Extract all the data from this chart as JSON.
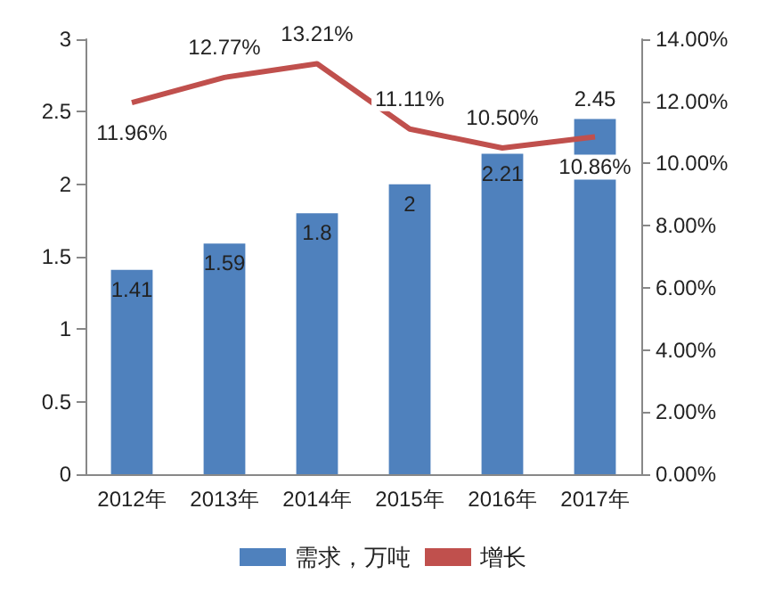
{
  "chart_data": {
    "type": "bar",
    "categories": [
      "2012年",
      "2013年",
      "2014年",
      "2015年",
      "2016年",
      "2017年"
    ],
    "series": [
      {
        "name": "需求，万吨",
        "color": "#4f81bd",
        "values": [
          1.41,
          1.59,
          1.8,
          2,
          2.21,
          2.45
        ],
        "value_labels": [
          "1.41",
          "1.59",
          "1.8",
          "2",
          "2.21",
          "2.45"
        ]
      },
      {
        "name": "增长",
        "type": "line",
        "axis": "y2",
        "color": "#c0504d",
        "values": [
          11.96,
          12.77,
          13.21,
          11.11,
          10.5,
          10.86
        ],
        "value_labels": [
          "11.96%",
          "12.77%",
          "13.21%",
          "11.11%",
          "10.50%",
          "10.86%"
        ]
      }
    ],
    "ylim": [
      0,
      3
    ],
    "yticks": [
      0,
      0.5,
      1,
      1.5,
      2,
      2.5,
      3
    ],
    "y2lim": [
      0,
      14
    ],
    "y2ticks": [
      {
        "value": 0,
        "label": "0.00%"
      },
      {
        "value": 2,
        "label": "2.00%"
      },
      {
        "value": 4,
        "label": "4.00%"
      },
      {
        "value": 6,
        "label": "6.00%"
      },
      {
        "value": 8,
        "label": "8.00%"
      },
      {
        "value": 10,
        "label": "10.00%"
      },
      {
        "value": 12,
        "label": "12.00%"
      },
      {
        "value": 14,
        "label": "14.00%"
      }
    ],
    "grid": false,
    "legend": "bottom",
    "marker": "none",
    "line_style": "solid"
  }
}
